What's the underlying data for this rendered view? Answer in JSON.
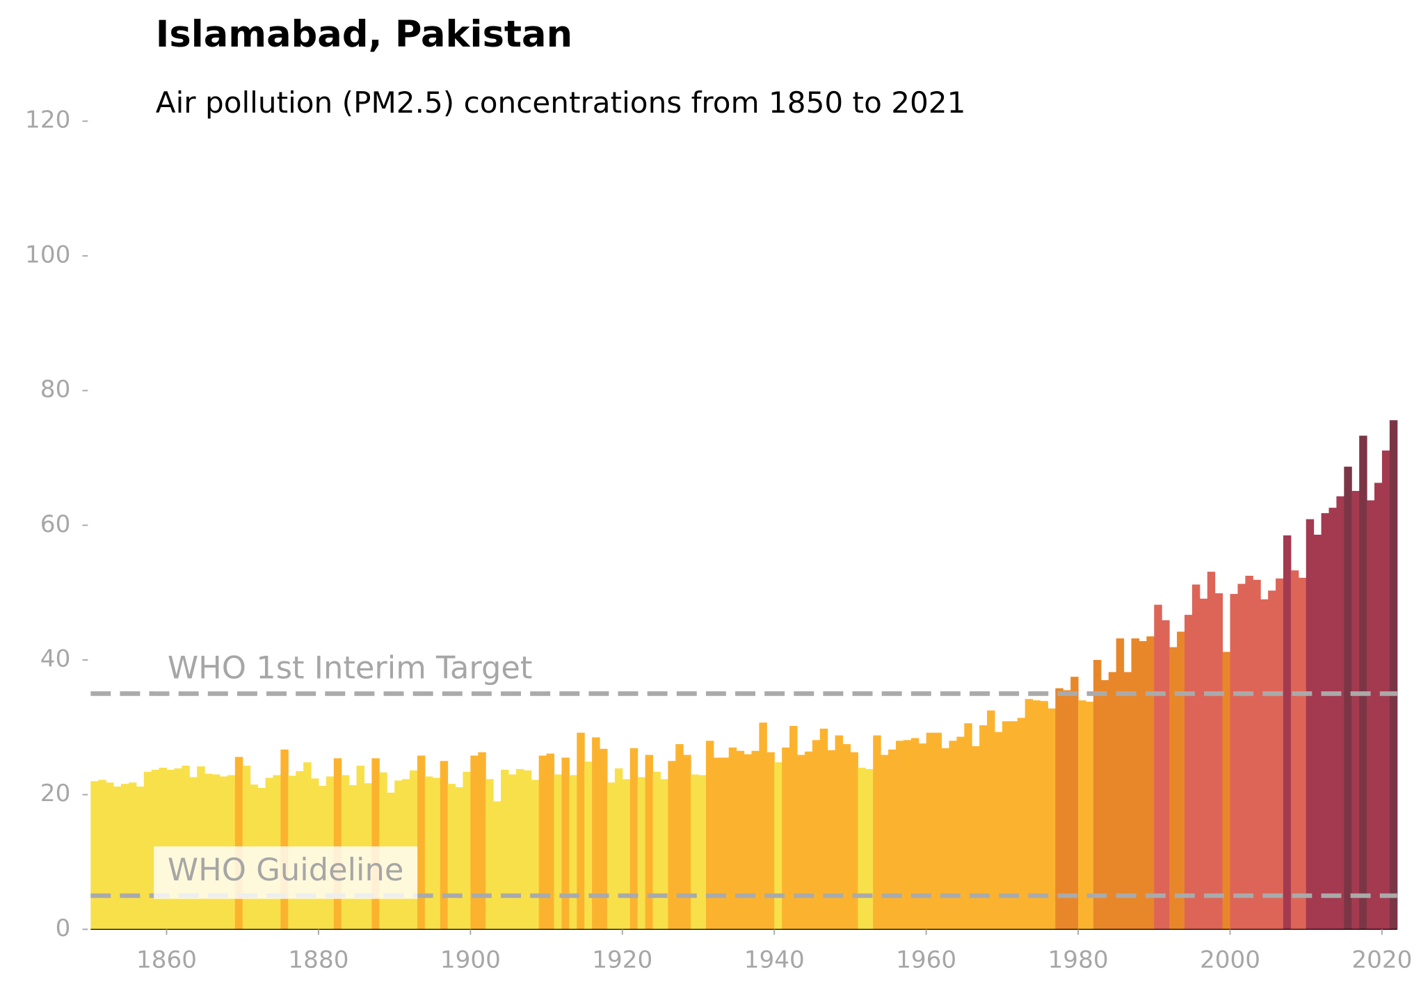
{
  "chart_data": {
    "type": "bar",
    "title": "Islamabad, Pakistan",
    "subtitle": "Air pollution (PM2.5) concentrations from 1850 to 2021",
    "x": [
      1850,
      1851,
      1852,
      1853,
      1854,
      1855,
      1856,
      1857,
      1858,
      1859,
      1860,
      1861,
      1862,
      1863,
      1864,
      1865,
      1866,
      1867,
      1868,
      1869,
      1870,
      1871,
      1872,
      1873,
      1874,
      1875,
      1876,
      1877,
      1878,
      1879,
      1880,
      1881,
      1882,
      1883,
      1884,
      1885,
      1886,
      1887,
      1888,
      1889,
      1890,
      1891,
      1892,
      1893,
      1894,
      1895,
      1896,
      1897,
      1898,
      1899,
      1900,
      1901,
      1902,
      1903,
      1904,
      1905,
      1906,
      1907,
      1908,
      1909,
      1910,
      1911,
      1912,
      1913,
      1914,
      1915,
      1916,
      1917,
      1918,
      1919,
      1920,
      1921,
      1922,
      1923,
      1924,
      1925,
      1926,
      1927,
      1928,
      1929,
      1930,
      1931,
      1932,
      1933,
      1934,
      1935,
      1936,
      1937,
      1938,
      1939,
      1940,
      1941,
      1942,
      1943,
      1944,
      1945,
      1946,
      1947,
      1948,
      1949,
      1950,
      1951,
      1952,
      1953,
      1954,
      1955,
      1956,
      1957,
      1958,
      1959,
      1960,
      1961,
      1962,
      1963,
      1964,
      1965,
      1966,
      1967,
      1968,
      1969,
      1970,
      1971,
      1972,
      1973,
      1974,
      1975,
      1976,
      1977,
      1978,
      1979,
      1980,
      1981,
      1982,
      1983,
      1984,
      1985,
      1986,
      1987,
      1988,
      1989,
      1990,
      1991,
      1992,
      1993,
      1994,
      1995,
      1996,
      1997,
      1998,
      1999,
      2000,
      2001,
      2002,
      2003,
      2004,
      2005,
      2006,
      2007,
      2008,
      2009,
      2010,
      2011,
      2012,
      2013,
      2014,
      2015,
      2016,
      2017,
      2018,
      2019,
      2020,
      2021
    ],
    "values": [
      22.0,
      22.2,
      21.8,
      21.2,
      21.6,
      21.8,
      21.2,
      23.4,
      23.7,
      24.0,
      23.7,
      23.9,
      24.3,
      22.6,
      24.2,
      23.1,
      23.0,
      22.7,
      22.9,
      25.6,
      24.3,
      21.5,
      21.0,
      22.5,
      22.9,
      26.7,
      22.8,
      23.5,
      24.8,
      22.4,
      21.3,
      22.7,
      25.4,
      22.9,
      21.4,
      24.3,
      21.7,
      25.4,
      23.3,
      20.3,
      22.1,
      22.3,
      23.6,
      25.8,
      22.7,
      22.5,
      25.0,
      21.6,
      21.1,
      23.4,
      25.8,
      26.3,
      22.3,
      19.0,
      23.7,
      23.0,
      23.8,
      23.6,
      22.2,
      25.8,
      26.1,
      23.0,
      25.5,
      22.9,
      29.2,
      24.9,
      28.5,
      26.8,
      21.8,
      23.9,
      22.3,
      26.9,
      22.6,
      25.9,
      23.4,
      22.3,
      25.0,
      27.5,
      25.9,
      23.0,
      22.9,
      28.0,
      25.5,
      25.5,
      27.0,
      26.5,
      26.0,
      26.5,
      30.7,
      26.3,
      24.8,
      27.0,
      30.2,
      25.9,
      26.4,
      28.1,
      29.8,
      26.6,
      28.8,
      27.5,
      26.3,
      24.0,
      23.8,
      28.8,
      25.9,
      26.7,
      28.0,
      28.1,
      28.4,
      27.6,
      29.2,
      29.2,
      26.9,
      28.0,
      28.6,
      30.6,
      27.2,
      30.3,
      32.5,
      29.3,
      30.9,
      30.9,
      31.4,
      34.2,
      34.0,
      33.9,
      32.8,
      35.8,
      35.5,
      37.5,
      34.0,
      33.8,
      40.0,
      37.0,
      38.2,
      43.2,
      38.2,
      43.2,
      42.8,
      43.5,
      48.2,
      45.9,
      41.9,
      44.2,
      46.7,
      51.2,
      49.1,
      53.1,
      49.9,
      41.2,
      49.8,
      51.3,
      52.5,
      51.9,
      49.0,
      50.3,
      52.1,
      58.5,
      53.3,
      52.2,
      60.9,
      58.6,
      61.8,
      62.6,
      64.3,
      68.7,
      65.1,
      73.3,
      63.7,
      66.3,
      71.1,
      75.6
    ],
    "colors": [
      "#f8e04a",
      "#f8e04a",
      "#f8e04a",
      "#f8e04a",
      "#f8e04a",
      "#f8e04a",
      "#f8e04a",
      "#f8e04a",
      "#f8e04a",
      "#f8e04a",
      "#f8e04a",
      "#f8e04a",
      "#f8e04a",
      "#f8e04a",
      "#f8e04a",
      "#f8e04a",
      "#f8e04a",
      "#f8e04a",
      "#f8e04a",
      "#fbb32f",
      "#f8e04a",
      "#f8e04a",
      "#f8e04a",
      "#f8e04a",
      "#f8e04a",
      "#fbb32f",
      "#f8e04a",
      "#f8e04a",
      "#f8e04a",
      "#f8e04a",
      "#f8e04a",
      "#f8e04a",
      "#fbb32f",
      "#f8e04a",
      "#f8e04a",
      "#f8e04a",
      "#f8e04a",
      "#fbb32f",
      "#f8e04a",
      "#f8e04a",
      "#f8e04a",
      "#f8e04a",
      "#f8e04a",
      "#fbb32f",
      "#f8e04a",
      "#f8e04a",
      "#fbb32f",
      "#f8e04a",
      "#f8e04a",
      "#f8e04a",
      "#fbb32f",
      "#fbb32f",
      "#f8e04a",
      "#f8e04a",
      "#f8e04a",
      "#f8e04a",
      "#f8e04a",
      "#f8e04a",
      "#f8e04a",
      "#fbb32f",
      "#fbb32f",
      "#f8e04a",
      "#fbb32f",
      "#f8e04a",
      "#fbb32f",
      "#f8e04a",
      "#fbb32f",
      "#fbb32f",
      "#f8e04a",
      "#f8e04a",
      "#f8e04a",
      "#fbb32f",
      "#f8e04a",
      "#fbb32f",
      "#f8e04a",
      "#f8e04a",
      "#fbb32f",
      "#fbb32f",
      "#fbb32f",
      "#f8e04a",
      "#f8e04a",
      "#fbb32f",
      "#fbb32f",
      "#fbb32f",
      "#fbb32f",
      "#fbb32f",
      "#fbb32f",
      "#fbb32f",
      "#fbb32f",
      "#fbb32f",
      "#f8e04a",
      "#fbb32f",
      "#fbb32f",
      "#fbb32f",
      "#fbb32f",
      "#fbb32f",
      "#fbb32f",
      "#fbb32f",
      "#fbb32f",
      "#fbb32f",
      "#fbb32f",
      "#f8e04a",
      "#f8e04a",
      "#fbb32f",
      "#fbb32f",
      "#fbb32f",
      "#fbb32f",
      "#fbb32f",
      "#fbb32f",
      "#fbb32f",
      "#fbb32f",
      "#fbb32f",
      "#fbb32f",
      "#fbb32f",
      "#fbb32f",
      "#fbb32f",
      "#fbb32f",
      "#fbb32f",
      "#fbb32f",
      "#fbb32f",
      "#fbb32f",
      "#fbb32f",
      "#fbb32f",
      "#fbb32f",
      "#fbb32f",
      "#fbb32f",
      "#fbb32f",
      "#e8872a",
      "#e8872a",
      "#e8872a",
      "#fbb32f",
      "#fbb32f",
      "#e8872a",
      "#e8872a",
      "#e8872a",
      "#e8872a",
      "#e8872a",
      "#e8872a",
      "#e8872a",
      "#e8872a",
      "#dc6558",
      "#dc6558",
      "#e8872a",
      "#e8872a",
      "#dc6558",
      "#dc6558",
      "#dc6558",
      "#dc6558",
      "#dc6558",
      "#e8872a",
      "#dc6558",
      "#dc6558",
      "#dc6558",
      "#dc6558",
      "#dc6558",
      "#dc6558",
      "#dc6558",
      "#a33a50",
      "#dc6558",
      "#dc6558",
      "#a33a50",
      "#a33a50",
      "#a33a50",
      "#a33a50",
      "#a33a50",
      "#7b3646",
      "#a33a50",
      "#7b3646",
      "#a33a50",
      "#a33a50",
      "#a33a50",
      "#7b3646"
    ],
    "xlim": [
      1850,
      2022
    ],
    "xticks": [
      1860,
      1880,
      1900,
      1920,
      1940,
      1960,
      1980,
      2000,
      2020
    ],
    "ylim": [
      0,
      120
    ],
    "yticks": [
      0,
      20,
      40,
      60,
      80,
      100,
      120
    ],
    "reference_lines": [
      {
        "label": "WHO 1st Interim Target",
        "value": 35
      },
      {
        "label": "WHO Guideline",
        "value": 5
      }
    ]
  }
}
